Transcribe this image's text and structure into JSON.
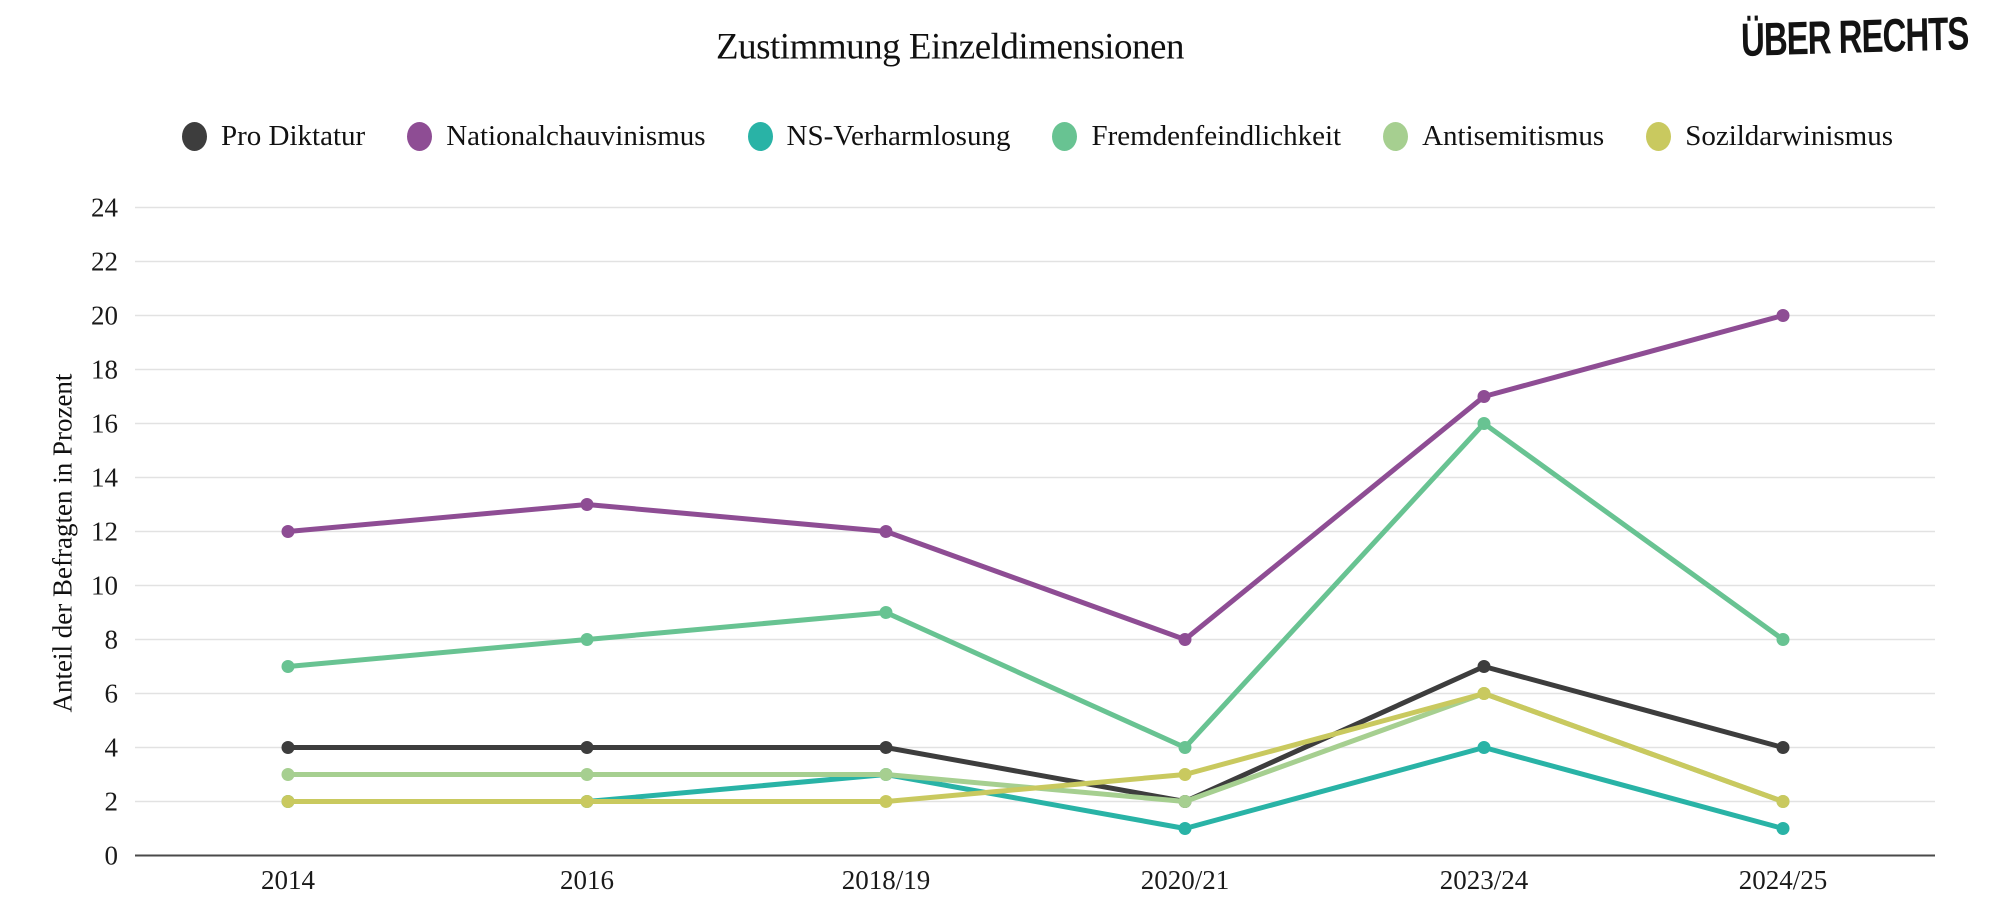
{
  "title": "Zustimmung Einzeldimensionen",
  "logo_text": "ÜBER RECHTS",
  "chart_data": {
    "type": "line",
    "categories": [
      "2014",
      "2016",
      "2018/19",
      "2020/21",
      "2023/24",
      "2024/25"
    ],
    "series": [
      {
        "name": "Pro Diktatur",
        "color": "#3d3d3d",
        "values": [
          4,
          4,
          4,
          2,
          7,
          4
        ]
      },
      {
        "name": "Nationalchauvinismus",
        "color": "#8e4d94",
        "values": [
          12,
          13,
          12,
          8,
          17,
          20
        ]
      },
      {
        "name": "NS-Verharmlosung",
        "color": "#29b3a6",
        "values": [
          2,
          2,
          3,
          1,
          4,
          1
        ]
      },
      {
        "name": "Fremdenfeindlichkeit",
        "color": "#68c392",
        "values": [
          7,
          8,
          9,
          4,
          16,
          8
        ]
      },
      {
        "name": "Antisemitismus",
        "color": "#a6cf90",
        "values": [
          3,
          3,
          3,
          2,
          6,
          2
        ]
      },
      {
        "name": "Sozildarwinismus",
        "color": "#c9c95f",
        "values": [
          2,
          2,
          2,
          3,
          6,
          2
        ]
      }
    ],
    "title": "Zustimmung Einzeldimensionen",
    "xlabel": "",
    "ylabel": "Anteil der Befragten in Prozent",
    "ylim": [
      0,
      24
    ],
    "ytick_step": 2,
    "grid": true,
    "legend_position": "top",
    "draw_order": [
      "NS-Verharmlosung",
      "Pro Diktatur",
      "Antisemitismus",
      "Sozildarwinismus",
      "Fremdenfeindlichkeit",
      "Nationalchauvinismus"
    ]
  },
  "style_colors": {
    "grid": "#e2e2e2",
    "axis": "#4a4a4a",
    "background": "#ffffff",
    "text": "#1a1a1a"
  }
}
